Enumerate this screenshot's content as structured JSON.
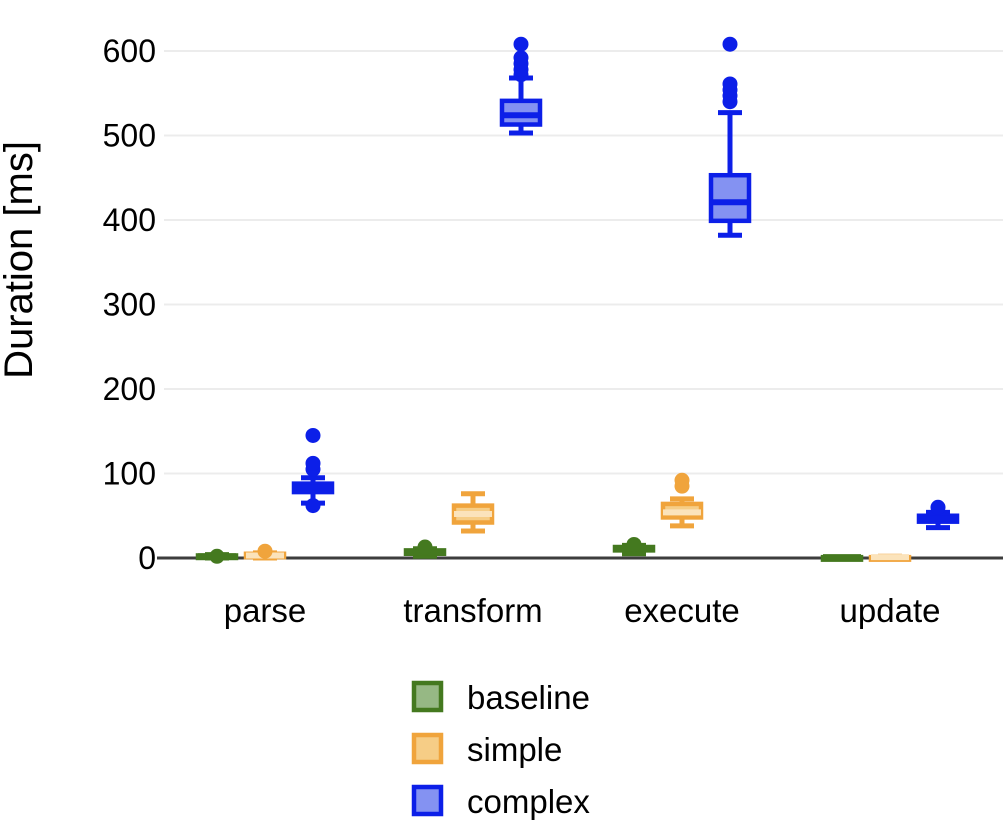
{
  "chart_data": {
    "type": "boxplot",
    "title": "",
    "xlabel": "",
    "ylabel": "Duration [ms]",
    "categories": [
      "parse",
      "transform",
      "execute",
      "update"
    ],
    "y_axis": {
      "ticks": [
        0,
        100,
        200,
        300,
        400,
        500,
        600
      ],
      "range": [
        0,
        620
      ],
      "grid": true
    },
    "legend": {
      "position": "bottom",
      "entries": [
        "baseline",
        "simple",
        "complex"
      ]
    },
    "colors": {
      "axis_line": "#3d3d3d",
      "gridline": "#ececec",
      "text": "#000000",
      "background": "#ffffff"
    },
    "series": [
      {
        "name": "baseline",
        "colors": {
          "stroke": "#44791f",
          "fill": "#96b884",
          "median": "#44791f"
        },
        "boxes": [
          {
            "category": "parse",
            "low": 0,
            "q1": 1,
            "median": 2,
            "q3": 3,
            "high": 4,
            "outliers": [
              2
            ]
          },
          {
            "category": "transform",
            "low": 2,
            "q1": 5,
            "median": 7,
            "q3": 9,
            "high": 11,
            "outliers": [
              13
            ]
          },
          {
            "category": "execute",
            "low": 5,
            "q1": 9,
            "median": 11,
            "q3": 13,
            "high": 15,
            "outliers": [
              16
            ]
          },
          {
            "category": "update",
            "low": 0,
            "q1": 0,
            "median": 1,
            "q3": 1,
            "high": 1,
            "outliers": []
          }
        ]
      },
      {
        "name": "simple",
        "colors": {
          "stroke": "#f0a43c",
          "fill": "#f6cd86",
          "median": "#fbe3bb"
        },
        "boxes": [
          {
            "category": "parse",
            "low": 0,
            "q1": 1,
            "median": 3,
            "q3": 5,
            "high": 6,
            "outliers": [
              8
            ]
          },
          {
            "category": "transform",
            "low": 32,
            "q1": 42,
            "median": 52,
            "q3": 62,
            "high": 76,
            "outliers": []
          },
          {
            "category": "execute",
            "low": 38,
            "q1": 48,
            "median": 54,
            "q3": 64,
            "high": 70,
            "outliers": [
              85,
              92
            ]
          },
          {
            "category": "update",
            "low": 0,
            "q1": 0,
            "median": 1,
            "q3": 1,
            "high": 2,
            "outliers": []
          }
        ]
      },
      {
        "name": "complex",
        "colors": {
          "stroke": "#0c1fe8",
          "fill": "#8492f2",
          "median": "#0c1fe8"
        },
        "boxes": [
          {
            "category": "parse",
            "low": 65,
            "q1": 78,
            "median": 83,
            "q3": 88,
            "high": 95,
            "outliers": [
              62,
              105,
              112,
              145
            ]
          },
          {
            "category": "transform",
            "low": 503,
            "q1": 513,
            "median": 524,
            "q3": 541,
            "high": 568,
            "outliers": [
              572,
              578,
              585,
              592,
              608
            ]
          },
          {
            "category": "execute",
            "low": 382,
            "q1": 399,
            "median": 421,
            "q3": 453,
            "high": 527,
            "outliers": [
              540,
              547,
              554,
              561,
              608
            ]
          },
          {
            "category": "update",
            "low": 36,
            "q1": 43,
            "median": 47,
            "q3": 50,
            "high": 54,
            "outliers": [
              60
            ]
          }
        ]
      }
    ]
  }
}
